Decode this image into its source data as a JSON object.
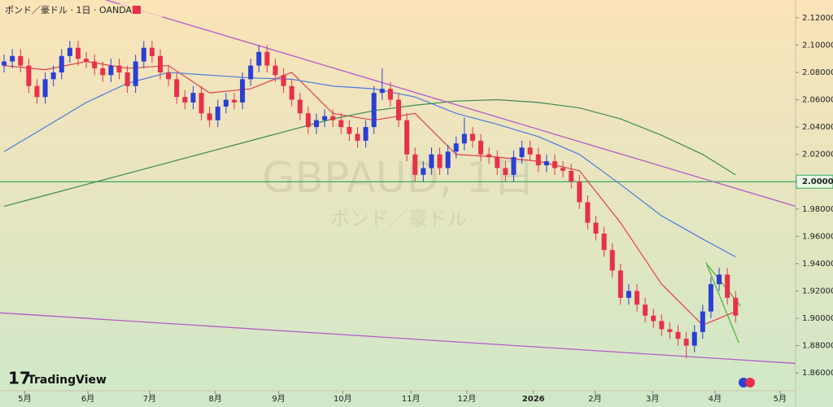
{
  "chart_data": {
    "type": "candlestick",
    "title": "ポンド／豪ドル · 1日 · OANDA",
    "watermark": "GBPAUD, 1日",
    "watermark_sub": "ポンド／豪ドル",
    "brand": "TradingView",
    "up_color": "#2a3fd6",
    "down_color": "#e8304a",
    "xlim": [
      -0.5,
      96.3
    ],
    "ylim": [
      1.847,
      2.133
    ],
    "xticks": [
      {
        "value": 2.5,
        "label": "5月"
      },
      {
        "value": 10.2,
        "label": "6月"
      },
      {
        "value": 17.7,
        "label": "7月"
      },
      {
        "value": 25.7,
        "label": "8月"
      },
      {
        "value": 33.4,
        "label": "9月"
      },
      {
        "value": 41.2,
        "label": "10月"
      },
      {
        "value": 49.5,
        "label": "11月"
      },
      {
        "value": 56.3,
        "label": "12月"
      },
      {
        "value": 64.4,
        "label": "2026"
      },
      {
        "value": 71.9,
        "label": "2月"
      },
      {
        "value": 78.9,
        "label": "3月"
      },
      {
        "value": 86.5,
        "label": "4月"
      },
      {
        "value": 94.4,
        "label": "5月"
      }
    ],
    "yticks": [
      {
        "value": 2.12,
        "label": "2.12000"
      },
      {
        "value": 2.1,
        "label": "2.10000"
      },
      {
        "value": 2.08,
        "label": "2.08000"
      },
      {
        "value": 2.06,
        "label": "2.06000"
      },
      {
        "value": 2.04,
        "label": "2.04000"
      },
      {
        "value": 2.02,
        "label": "2.02000"
      },
      {
        "value": 2.0,
        "label": "2.00000"
      },
      {
        "value": 1.98,
        "label": "1.98000"
      },
      {
        "value": 1.96,
        "label": "1.96000"
      },
      {
        "value": 1.94,
        "label": "1.94000"
      },
      {
        "value": 1.92,
        "label": "1.92000"
      },
      {
        "value": 1.9,
        "label": "1.90000"
      },
      {
        "value": 1.88,
        "label": "1.88000"
      },
      {
        "value": 1.86,
        "label": "1.86000"
      }
    ],
    "hline": {
      "value": 2.0,
      "label": "2.00000",
      "color": "#3aa860"
    },
    "open": [
      2.085,
      2.088,
      2.092,
      2.085,
      2.07,
      2.062,
      2.075,
      2.08,
      2.092,
      2.098,
      2.09,
      2.088,
      2.083,
      2.078,
      2.085,
      2.08,
      2.07,
      2.088,
      2.098,
      2.092,
      2.08,
      2.075,
      2.062,
      2.058,
      2.065,
      2.05,
      2.045,
      2.055,
      2.06,
      2.058,
      2.075,
      2.085,
      2.095,
      2.085,
      2.078,
      2.07,
      2.06,
      2.05,
      2.04,
      2.045,
      2.048,
      2.045,
      2.04,
      2.035,
      2.03,
      2.04,
      2.065,
      2.068,
      2.06,
      2.045,
      2.02,
      2.005,
      2.01,
      2.02,
      2.01,
      2.022,
      2.028,
      2.035,
      2.03,
      2.02,
      2.018,
      2.01,
      2.005,
      2.018,
      2.025,
      2.02,
      2.012,
      2.015,
      2.01,
      2.008,
      2.0,
      1.985,
      1.97,
      1.962,
      1.95,
      1.935,
      1.915,
      1.92,
      1.91,
      1.902,
      1.898,
      1.892,
      1.89,
      1.885,
      1.88,
      1.89,
      1.905,
      1.925,
      1.932,
      1.915
    ],
    "high": [
      2.093,
      2.097,
      2.097,
      2.09,
      2.075,
      2.08,
      2.085,
      2.097,
      2.103,
      2.103,
      2.095,
      2.093,
      2.088,
      2.09,
      2.09,
      2.085,
      2.093,
      2.103,
      2.103,
      2.097,
      2.085,
      2.08,
      2.067,
      2.07,
      2.07,
      2.055,
      2.06,
      2.065,
      2.065,
      2.08,
      2.09,
      2.1,
      2.1,
      2.09,
      2.083,
      2.075,
      2.065,
      2.055,
      2.05,
      2.053,
      2.053,
      2.05,
      2.045,
      2.04,
      2.045,
      2.07,
      2.083,
      2.073,
      2.065,
      2.05,
      2.025,
      2.015,
      2.025,
      2.025,
      2.027,
      2.033,
      2.047,
      2.04,
      2.035,
      2.025,
      2.023,
      2.015,
      2.023,
      2.03,
      2.03,
      2.025,
      2.02,
      2.02,
      2.015,
      2.013,
      2.005,
      1.99,
      1.975,
      1.967,
      1.955,
      1.94,
      1.925,
      1.925,
      1.915,
      1.907,
      1.903,
      1.897,
      1.895,
      1.89,
      1.895,
      1.91,
      1.93,
      1.937,
      1.937,
      1.92
    ],
    "low": [
      2.08,
      2.083,
      2.08,
      2.065,
      2.057,
      2.057,
      2.07,
      2.075,
      2.087,
      2.085,
      2.083,
      2.078,
      2.073,
      2.073,
      2.075,
      2.065,
      2.065,
      2.083,
      2.087,
      2.075,
      2.07,
      2.057,
      2.053,
      2.053,
      2.045,
      2.04,
      2.04,
      2.05,
      2.053,
      2.053,
      2.07,
      2.08,
      2.08,
      2.073,
      2.065,
      2.055,
      2.045,
      2.035,
      2.035,
      2.04,
      2.04,
      2.035,
      2.03,
      2.025,
      2.025,
      2.035,
      2.06,
      2.055,
      2.04,
      2.015,
      2.0,
      2.0,
      2.005,
      2.005,
      2.005,
      2.017,
      2.023,
      2.025,
      2.015,
      2.013,
      2.005,
      2.0,
      2.0,
      2.013,
      2.015,
      2.007,
      2.007,
      2.005,
      2.003,
      1.995,
      1.98,
      1.965,
      1.957,
      1.945,
      1.93,
      1.91,
      1.91,
      1.905,
      1.897,
      1.893,
      1.887,
      1.885,
      1.88,
      1.871,
      1.875,
      1.885,
      1.9,
      1.92,
      1.91,
      1.897
    ],
    "close": [
      2.088,
      2.092,
      2.085,
      2.07,
      2.062,
      2.075,
      2.08,
      2.092,
      2.098,
      2.09,
      2.088,
      2.083,
      2.078,
      2.085,
      2.08,
      2.07,
      2.088,
      2.098,
      2.092,
      2.08,
      2.075,
      2.062,
      2.058,
      2.065,
      2.05,
      2.045,
      2.055,
      2.06,
      2.058,
      2.075,
      2.085,
      2.095,
      2.085,
      2.078,
      2.07,
      2.06,
      2.05,
      2.04,
      2.045,
      2.048,
      2.045,
      2.04,
      2.035,
      2.03,
      2.04,
      2.065,
      2.068,
      2.06,
      2.045,
      2.02,
      2.005,
      2.01,
      2.02,
      2.01,
      2.022,
      2.028,
      2.035,
      2.03,
      2.02,
      2.018,
      2.01,
      2.005,
      2.018,
      2.025,
      2.02,
      2.012,
      2.015,
      2.01,
      2.008,
      2.0,
      1.985,
      1.97,
      1.962,
      1.95,
      1.935,
      1.915,
      1.92,
      1.91,
      1.902,
      1.898,
      1.892,
      1.89,
      1.885,
      1.88,
      1.89,
      1.905,
      1.925,
      1.932,
      1.915,
      1.902
    ],
    "lines": [
      {
        "color": "#e0404f",
        "x": [
          0,
          5,
          10,
          15,
          20,
          25,
          30,
          35,
          40,
          45,
          50,
          55,
          60,
          65,
          70,
          75,
          80,
          85,
          89
        ],
        "values": [
          2.085,
          2.082,
          2.088,
          2.083,
          2.085,
          2.065,
          2.068,
          2.08,
          2.05,
          2.045,
          2.05,
          2.02,
          2.018,
          2.015,
          2.008,
          1.97,
          1.925,
          1.895,
          1.905
        ]
      },
      {
        "color": "#4a7be0",
        "x": [
          0,
          5,
          10,
          15,
          20,
          25,
          30,
          35,
          40,
          45,
          50,
          55,
          60,
          65,
          70,
          75,
          80,
          85,
          89
        ],
        "values": [
          2.022,
          2.04,
          2.058,
          2.072,
          2.08,
          2.078,
          2.076,
          2.075,
          2.07,
          2.068,
          2.062,
          2.05,
          2.042,
          2.033,
          2.02,
          1.998,
          1.975,
          1.958,
          1.945
        ]
      },
      {
        "color": "#3c8a55",
        "x": [
          0,
          5,
          10,
          15,
          20,
          25,
          30,
          35,
          40,
          45,
          50,
          55,
          60,
          65,
          70,
          75,
          80,
          85,
          89
        ],
        "values": [
          1.982,
          1.99,
          1.998,
          2.006,
          2.014,
          2.022,
          2.03,
          2.038,
          2.046,
          2.052,
          2.056,
          2.059,
          2.06,
          2.058,
          2.054,
          2.046,
          2.034,
          2.02,
          2.005
        ]
      },
      {
        "color": "#b45ac8",
        "x": [
          12.4,
          96.3
        ],
        "values": [
          2.133,
          1.982
        ]
      },
      {
        "color": "#b45ac8",
        "x": [
          -0.5,
          96.3
        ],
        "values": [
          1.904,
          1.867
        ]
      },
      {
        "color": "#5bb040",
        "x": [
          85.4,
          89.4
        ],
        "values": [
          1.941,
          1.882
        ]
      },
      {
        "color": "#5bb040",
        "x": [
          85.6,
          89.6
        ],
        "values": [
          1.939,
          1.909
        ]
      }
    ]
  }
}
